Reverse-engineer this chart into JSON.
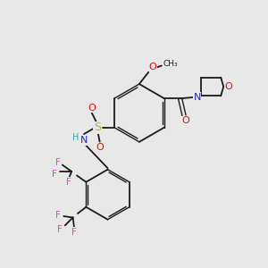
{
  "bg_color": "#e8e8e8",
  "bond_color": "#1a1a1a",
  "colors": {
    "O": "#dd1100",
    "N": "#2222dd",
    "S": "#bbbb00",
    "F": "#ee44bb",
    "H": "#33aaaa",
    "C": "#1a1a1a"
  }
}
